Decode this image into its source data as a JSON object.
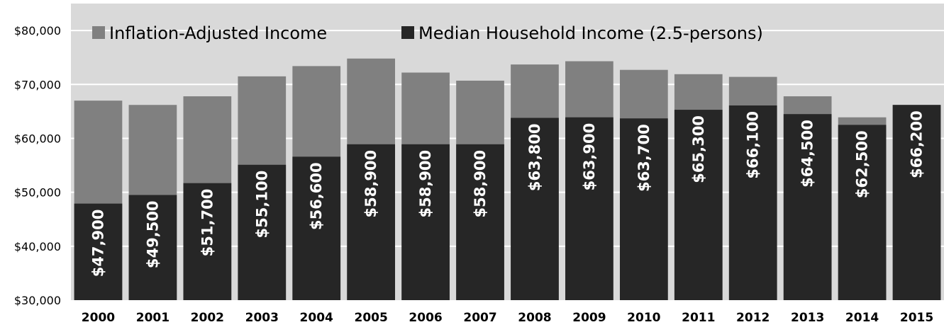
{
  "chart_data": {
    "type": "bar",
    "stacking": "overlay",
    "title": "",
    "xlabel": "",
    "ylabel": "",
    "ylim": [
      30000,
      85000
    ],
    "yticks": [
      30000,
      40000,
      50000,
      60000,
      70000,
      80000
    ],
    "ytick_labels": [
      "$30,000",
      "$40,000",
      "$50,000",
      "$60,000",
      "$70,000",
      "$80,000"
    ],
    "grid": true,
    "legend_position": "top-left",
    "categories": [
      "2000",
      "2001",
      "2002",
      "2003",
      "2004",
      "2005",
      "2006",
      "2007",
      "2008",
      "2009",
      "2010",
      "2011",
      "2012",
      "2013",
      "2014",
      "2015"
    ],
    "series": [
      {
        "name": "Inflation-Adjusted Income",
        "color": "#808080",
        "values": [
          67000,
          66200,
          67800,
          71500,
          73400,
          74800,
          72200,
          70700,
          73700,
          74300,
          72700,
          71900,
          71400,
          67800,
          63900,
          66200
        ]
      },
      {
        "name": "Median Household Income (2.5-persons)",
        "color": "#262626",
        "values": [
          47900,
          49500,
          51700,
          55100,
          56600,
          58900,
          58900,
          58900,
          63800,
          63900,
          63700,
          65300,
          66100,
          64500,
          62500,
          66200
        ],
        "data_labels": [
          "$47,900",
          "$49,500",
          "$51,700",
          "$55,100",
          "$56,600",
          "$58,900",
          "$58,900",
          "$58,900",
          "$63,800",
          "$63,900",
          "$63,700",
          "$65,300",
          "$66,100",
          "$64,500",
          "$62,500",
          "$66,200"
        ]
      }
    ],
    "colors": {
      "plot_background": "#d9d9d9",
      "gridline": "#ffffff",
      "axis_text": "#000000",
      "data_label": "#ffffff"
    }
  }
}
